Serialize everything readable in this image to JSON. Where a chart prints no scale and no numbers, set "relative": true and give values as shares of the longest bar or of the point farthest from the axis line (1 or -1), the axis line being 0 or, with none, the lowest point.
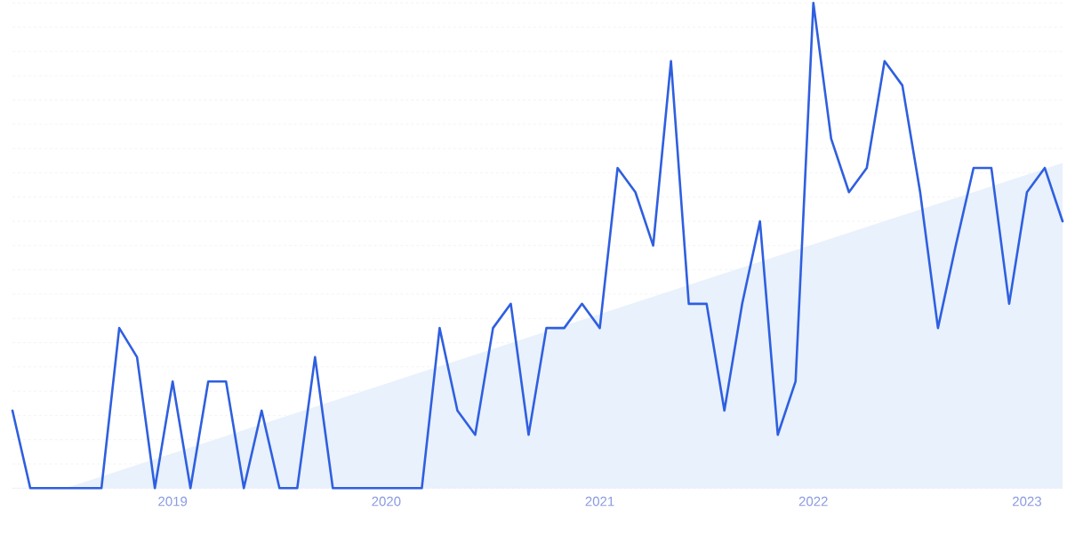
{
  "chart_data": {
    "type": "line",
    "relative": true,
    "grid": "y",
    "marker": "none",
    "line_style": "solid",
    "x": [
      "2018-04",
      "2018-05",
      "2018-06",
      "2018-07",
      "2018-08",
      "2018-09",
      "2018-10",
      "2018-11",
      "2018-12",
      "2019-01",
      "2019-02",
      "2019-03",
      "2019-04",
      "2019-05",
      "2019-06",
      "2019-07",
      "2019-08",
      "2019-09",
      "2019-10",
      "2019-11",
      "2019-12",
      "2020-01",
      "2020-02",
      "2020-03",
      "2020-04",
      "2020-05",
      "2020-06",
      "2020-07",
      "2020-08",
      "2020-09",
      "2020-10",
      "2020-11",
      "2020-12",
      "2021-01",
      "2021-02",
      "2021-03",
      "2021-04",
      "2021-05",
      "2021-06",
      "2021-07",
      "2021-08",
      "2021-09",
      "2021-10",
      "2021-11",
      "2021-12",
      "2022-01",
      "2022-02",
      "2022-03",
      "2022-04",
      "2022-05",
      "2022-06",
      "2022-07",
      "2022-08",
      "2022-09",
      "2022-10",
      "2022-11",
      "2022-12",
      "2023-01",
      "2023-02",
      "2023-03"
    ],
    "xlim": [
      "2018-04",
      "2023-03"
    ],
    "xticks": [
      {
        "value": "2019-01",
        "label": "2019"
      },
      {
        "value": "2020-01",
        "label": "2020"
      },
      {
        "value": "2021-01",
        "label": "2021"
      },
      {
        "value": "2022-01",
        "label": "2022"
      },
      {
        "value": "2023-01",
        "label": "2023"
      }
    ],
    "series": [
      {
        "type": "area",
        "color": "#e8f1fc",
        "x": [
          "2018-07",
          "2023-03"
        ],
        "values": [
          0,
          0.67
        ]
      },
      {
        "color": "#2f5fe0",
        "values": [
          0.16,
          0,
          0,
          0,
          0,
          0,
          0.33,
          0.27,
          0,
          0.22,
          0,
          0.22,
          0.22,
          0,
          0.16,
          0,
          0,
          0.27,
          0,
          0,
          0,
          0,
          0,
          0,
          0.33,
          0.16,
          0.11,
          0.33,
          0.38,
          0.11,
          0.33,
          0.33,
          0.38,
          0.33,
          0.66,
          0.61,
          0.5,
          0.88,
          0.38,
          0.38,
          0.16,
          0.38,
          0.55,
          0.11,
          0.22,
          1,
          0.72,
          0.61,
          0.66,
          0.88,
          0.83,
          0.61,
          0.33,
          0.5,
          0.66,
          0.66,
          0.38,
          0.61,
          0.66,
          0.55
        ]
      }
    ]
  }
}
